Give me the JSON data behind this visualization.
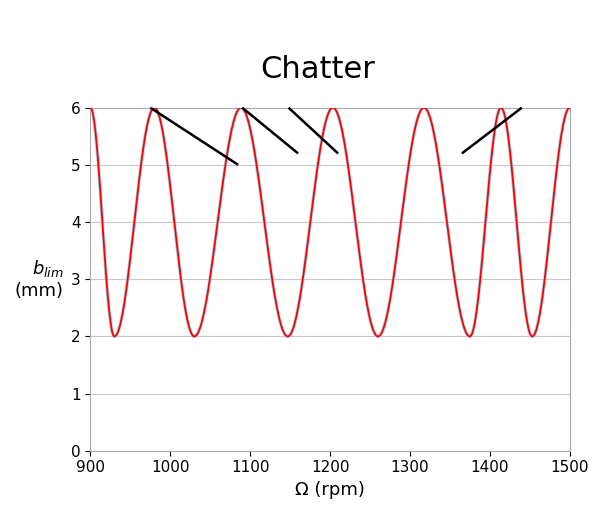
{
  "xlabel": "Ω (rpm)",
  "ylabel_latex": "$b_{lim}$\n(mm)",
  "xlim": [
    900,
    1500
  ],
  "ylim": [
    0,
    6
  ],
  "xticks": [
    900,
    1000,
    1100,
    1200,
    1300,
    1400,
    1500
  ],
  "yticks": [
    0,
    1,
    2,
    3,
    4,
    5,
    6
  ],
  "curve_color_red": "#ff0000",
  "curve_color_cyan": "#add8e6",
  "background_color": "#ffffff",
  "grid_color": "#c8c8c8",
  "b_min": 2.0,
  "b_max": 6.0,
  "lobe_minima": [
    930,
    1030,
    1147,
    1260,
    1375,
    1453
  ],
  "chatter_text": "Chatter",
  "chatter_fontsize": 22,
  "axis_label_fontsize": 13,
  "tick_fontsize": 11,
  "line_starts": [
    [
      1085,
      5.0
    ],
    [
      1160,
      5.2
    ],
    [
      1210,
      5.2
    ],
    [
      1365,
      5.2
    ]
  ],
  "line_ends": [
    [
      970,
      6.0
    ],
    [
      1090,
      6.0
    ],
    [
      1148,
      6.0
    ],
    [
      1440,
      6.0
    ]
  ],
  "chatter_x_data": 1185,
  "chatter_y_axes": 1.07
}
